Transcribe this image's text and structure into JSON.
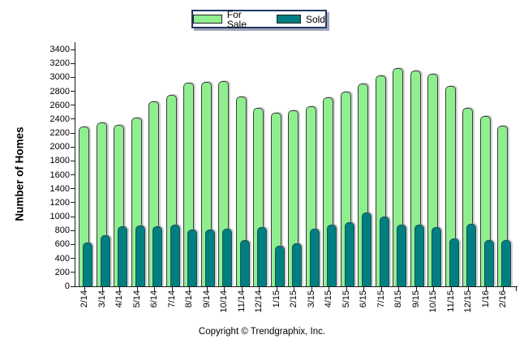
{
  "chart_data": {
    "type": "bar",
    "title": "",
    "ylabel": "Number of Homes",
    "xlabel": "",
    "categories": [
      "2/14",
      "3/14",
      "4/14",
      "5/14",
      "6/14",
      "7/14",
      "8/14",
      "9/14",
      "10/14",
      "11/14",
      "12/14",
      "1/15",
      "2/15",
      "3/15",
      "4/15",
      "5/15",
      "6/15",
      "7/15",
      "8/15",
      "9/15",
      "10/15",
      "11/15",
      "12/15",
      "1/16",
      "2/16"
    ],
    "series": [
      {
        "name": "For Sale",
        "color": "#8FEF8F",
        "border_color": "#3C3C3C",
        "values": [
          2290,
          2350,
          2320,
          2420,
          2660,
          2750,
          2920,
          2930,
          2950,
          2730,
          2560,
          2490,
          2530,
          2590,
          2710,
          2800,
          2910,
          3030,
          3130,
          3100,
          3050,
          2880,
          2560,
          2440,
          2310
        ]
      },
      {
        "name": "Sold",
        "color": "#007F81",
        "border_color": "#174F54",
        "values": [
          630,
          730,
          860,
          870,
          860,
          880,
          820,
          810,
          830,
          660,
          850,
          580,
          620,
          830,
          890,
          920,
          1060,
          1000,
          880,
          890,
          850,
          690,
          900,
          660,
          660
        ]
      }
    ],
    "ylim": [
      0,
      3400
    ],
    "ytick_step": 200,
    "grid": false,
    "legend_position": "top-center",
    "bar_style": "rounded-top"
  },
  "footer": {
    "copyright": "Copyright © Trendgraphix, Inc."
  }
}
